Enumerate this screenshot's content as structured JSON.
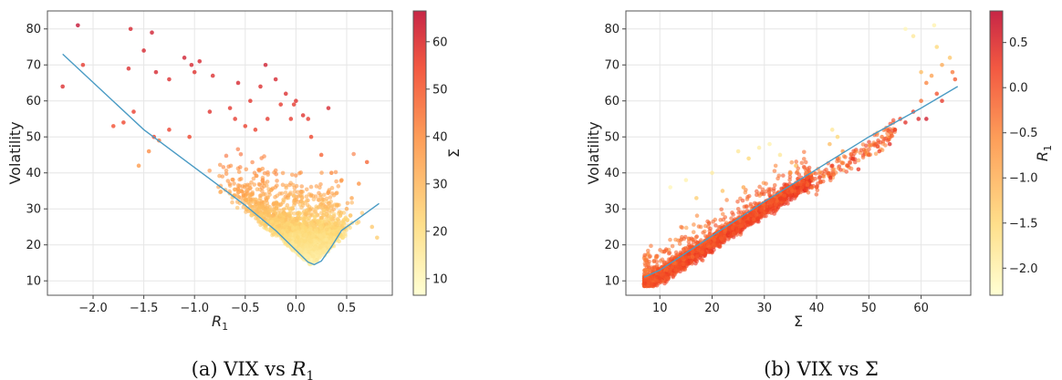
{
  "chart_data": [
    {
      "type": "scatter",
      "caption": "(a) VIX vs R₁",
      "xlabel": "R₁",
      "ylabel": "Volatility",
      "xlim": [
        -2.45,
        0.95
      ],
      "ylim": [
        6,
        85
      ],
      "xticks": [
        -2.0,
        -1.5,
        -1.0,
        -0.5,
        0.0,
        0.5
      ],
      "xtick_labels": [
        "−2.0",
        "−1.5",
        "−1.0",
        "−0.5",
        "0.0",
        "0.5"
      ],
      "yticks": [
        10,
        20,
        30,
        40,
        50,
        60,
        70,
        80
      ],
      "ytick_labels": [
        "10",
        "20",
        "30",
        "40",
        "50",
        "60",
        "70",
        "80"
      ],
      "grid": true,
      "colorbar": {
        "label": "Σ",
        "range": [
          6.5,
          66.5
        ],
        "ticks": [
          10,
          20,
          30,
          40,
          50,
          60
        ],
        "tick_labels": [
          "10",
          "20",
          "30",
          "40",
          "50",
          "60"
        ],
        "colormap": [
          "#ffffcc",
          "#fed976",
          "#fd8d3c",
          "#f03b20",
          "#bd0026"
        ]
      },
      "fit_line": {
        "color": "#4a9bc4",
        "x": [
          -2.3,
          -1.5,
          -1.0,
          -0.5,
          -0.2,
          0.0,
          0.12,
          0.18,
          0.25,
          0.35,
          0.45,
          0.6,
          0.82
        ],
        "y": [
          73,
          52,
          41.5,
          31,
          24,
          18.5,
          15.2,
          14.5,
          15.5,
          19.5,
          24,
          27,
          31.5
        ]
      },
      "points": [
        [
          -2.15,
          81,
          66
        ],
        [
          -2.3,
          64,
          58
        ],
        [
          -2.1,
          70,
          55
        ],
        [
          -1.63,
          80,
          60
        ],
        [
          -1.42,
          79,
          62
        ],
        [
          -1.5,
          74,
          60
        ],
        [
          -1.65,
          69,
          58
        ],
        [
          -1.38,
          68,
          60
        ],
        [
          -1.1,
          72,
          62
        ],
        [
          -1.03,
          70,
          60
        ],
        [
          -1.0,
          68,
          57
        ],
        [
          -0.95,
          71,
          60
        ],
        [
          -0.82,
          67,
          58
        ],
        [
          -0.57,
          65,
          60
        ],
        [
          -0.3,
          70,
          62
        ],
        [
          -0.2,
          66,
          60
        ],
        [
          -0.1,
          62,
          58
        ],
        [
          0.0,
          60,
          57
        ],
        [
          -0.35,
          64,
          58
        ],
        [
          -0.45,
          60,
          56
        ],
        [
          0.07,
          56,
          57
        ],
        [
          0.12,
          55,
          55
        ],
        [
          0.32,
          58,
          60
        ],
        [
          -1.25,
          66,
          58
        ],
        [
          -0.65,
          58,
          56
        ],
        [
          -0.15,
          59,
          55
        ],
        [
          -0.02,
          59,
          55
        ],
        [
          0.15,
          50,
          52
        ],
        [
          -0.5,
          53,
          53
        ],
        [
          -0.4,
          52,
          53
        ],
        [
          -0.28,
          55,
          55
        ],
        [
          -0.6,
          55,
          55
        ],
        [
          -0.85,
          57,
          57
        ],
        [
          -1.05,
          50,
          52
        ],
        [
          -1.25,
          52,
          53
        ],
        [
          -1.4,
          50,
          51
        ],
        [
          -1.7,
          54,
          52
        ],
        [
          -1.6,
          57,
          54
        ],
        [
          -1.8,
          53,
          50
        ],
        [
          -1.55,
          42,
          35
        ],
        [
          -1.45,
          46,
          38
        ],
        [
          -1.35,
          49,
          42
        ],
        [
          -0.05,
          55,
          55
        ],
        [
          0.25,
          45,
          46
        ],
        [
          0.7,
          43,
          45
        ],
        [
          0.8,
          22,
          24
        ],
        [
          0.75,
          25,
          25
        ],
        [
          0.62,
          37,
          36
        ],
        [
          0.55,
          33,
          32
        ],
        [
          0.45,
          38,
          35
        ],
        [
          0.35,
          40,
          38
        ],
        [
          0.5,
          30,
          30
        ]
      ]
    },
    {
      "type": "scatter",
      "caption": "(b) VIX vs Σ",
      "xlabel": "Σ",
      "ylabel": "Volatility",
      "xlim": [
        3.5,
        69.5
      ],
      "ylim": [
        6,
        85
      ],
      "xticks": [
        10,
        20,
        30,
        40,
        50,
        60
      ],
      "xtick_labels": [
        "10",
        "20",
        "30",
        "40",
        "50",
        "60"
      ],
      "yticks": [
        10,
        20,
        30,
        40,
        50,
        60,
        70,
        80
      ],
      "ytick_labels": [
        "10",
        "20",
        "30",
        "40",
        "50",
        "60",
        "70",
        "80"
      ],
      "grid": true,
      "colorbar": {
        "label": "R₁",
        "range": [
          -2.3,
          0.85
        ],
        "ticks": [
          -2.0,
          -1.5,
          -1.0,
          -0.5,
          0.0,
          0.5
        ],
        "tick_labels": [
          "−2.0",
          "−1.5",
          "−1.0",
          "−0.5",
          "0.0",
          "0.5"
        ],
        "colormap": [
          "#ffffcc",
          "#fed976",
          "#fd8d3c",
          "#f03b20",
          "#bd0026"
        ]
      },
      "fit_line": {
        "color": "#4a9bc4",
        "x": [
          7,
          10,
          20,
          30,
          40,
          50,
          60,
          67
        ],
        "y": [
          11,
          13,
          22.5,
          32,
          41,
          50,
          58,
          64
        ]
      },
      "points": [
        [
          57,
          80,
          -2.1
        ],
        [
          58.5,
          78,
          -1.8
        ],
        [
          62.5,
          81,
          -2.0
        ],
        [
          63,
          75,
          -1.5
        ],
        [
          64,
          70,
          -1.0
        ],
        [
          65.5,
          72,
          -1.3
        ],
        [
          66,
          68,
          -0.5
        ],
        [
          66.5,
          66,
          -0.2
        ],
        [
          60,
          68,
          -1.2
        ],
        [
          61,
          65,
          -0.6
        ],
        [
          62,
          67,
          -0.9
        ],
        [
          63,
          62,
          -0.1
        ],
        [
          64,
          60,
          0.2
        ],
        [
          60,
          60,
          -0.4
        ],
        [
          58.5,
          57,
          0.1
        ],
        [
          59.5,
          55,
          0.4
        ],
        [
          61,
          55,
          0.6
        ],
        [
          57,
          54,
          0.3
        ],
        [
          55,
          52,
          0.1
        ],
        [
          56,
          55,
          0.0
        ],
        [
          52.5,
          50,
          -0.5
        ],
        [
          43,
          52,
          -1.8
        ],
        [
          44,
          50,
          -1.5
        ],
        [
          42.5,
          48,
          -1.2
        ],
        [
          45,
          46,
          -0.8
        ],
        [
          44,
          44,
          -0.4
        ],
        [
          43,
          42,
          0.0
        ],
        [
          46,
          42,
          -0.2
        ],
        [
          48,
          41,
          0.2
        ],
        [
          50,
          45,
          -0.3
        ],
        [
          52,
          46,
          0.0
        ],
        [
          54,
          48,
          0.3
        ],
        [
          36,
          42,
          -1.6
        ],
        [
          33,
          45,
          -1.8
        ],
        [
          31,
          48,
          -2.0
        ],
        [
          29,
          47,
          -1.9
        ],
        [
          27,
          44,
          -1.5
        ],
        [
          25,
          46,
          -1.8
        ],
        [
          35,
          40,
          -0.9
        ],
        [
          38,
          40,
          -0.6
        ],
        [
          40,
          36,
          -0.2
        ],
        [
          12,
          36,
          -2.1
        ],
        [
          15,
          38,
          -2.0
        ],
        [
          20,
          40,
          -1.9
        ],
        [
          17,
          33,
          -1.4
        ],
        [
          22,
          35,
          -1.3
        ],
        [
          26,
          36,
          -1.0
        ]
      ]
    }
  ]
}
